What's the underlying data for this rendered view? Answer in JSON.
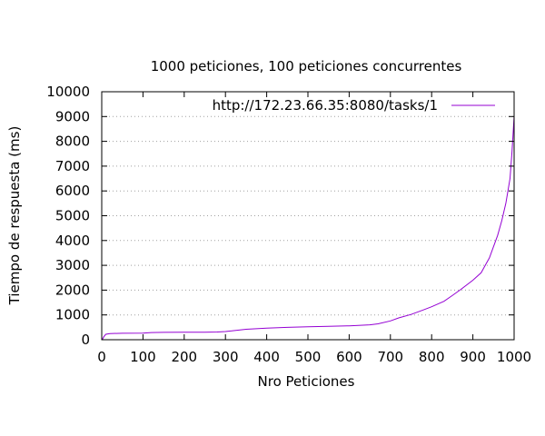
{
  "chart_data": {
    "type": "line",
    "title": "1000 peticiones, 100 peticiones concurrentes",
    "xlabel": "Nro Peticiones",
    "ylabel": "Tiempo de respuesta (ms)",
    "xlim": [
      0,
      1000
    ],
    "ylim": [
      0,
      10000
    ],
    "xticks": [
      0,
      100,
      200,
      300,
      400,
      500,
      600,
      700,
      800,
      900,
      1000
    ],
    "yticks": [
      0,
      1000,
      2000,
      3000,
      4000,
      5000,
      6000,
      7000,
      8000,
      9000,
      10000
    ],
    "grid": "horizontal, dotted",
    "legend_position": "top-right",
    "series": [
      {
        "name": "http://172.23.66.35:8080/tasks/1",
        "color": "#9400d3",
        "x": [
          1,
          5,
          10,
          20,
          50,
          100,
          120,
          150,
          200,
          250,
          280,
          300,
          350,
          400,
          450,
          500,
          550,
          600,
          650,
          670,
          700,
          720,
          750,
          780,
          800,
          830,
          850,
          870,
          900,
          920,
          930,
          940,
          950,
          960,
          970,
          980,
          990,
          995,
          1000
        ],
        "y": [
          0,
          120,
          220,
          250,
          260,
          265,
          290,
          295,
          300,
          300,
          310,
          330,
          420,
          470,
          500,
          520,
          540,
          560,
          600,
          640,
          760,
          880,
          1020,
          1200,
          1330,
          1550,
          1780,
          2020,
          2400,
          2700,
          3000,
          3300,
          3750,
          4200,
          4800,
          5500,
          6500,
          7600,
          9000
        ]
      }
    ]
  }
}
